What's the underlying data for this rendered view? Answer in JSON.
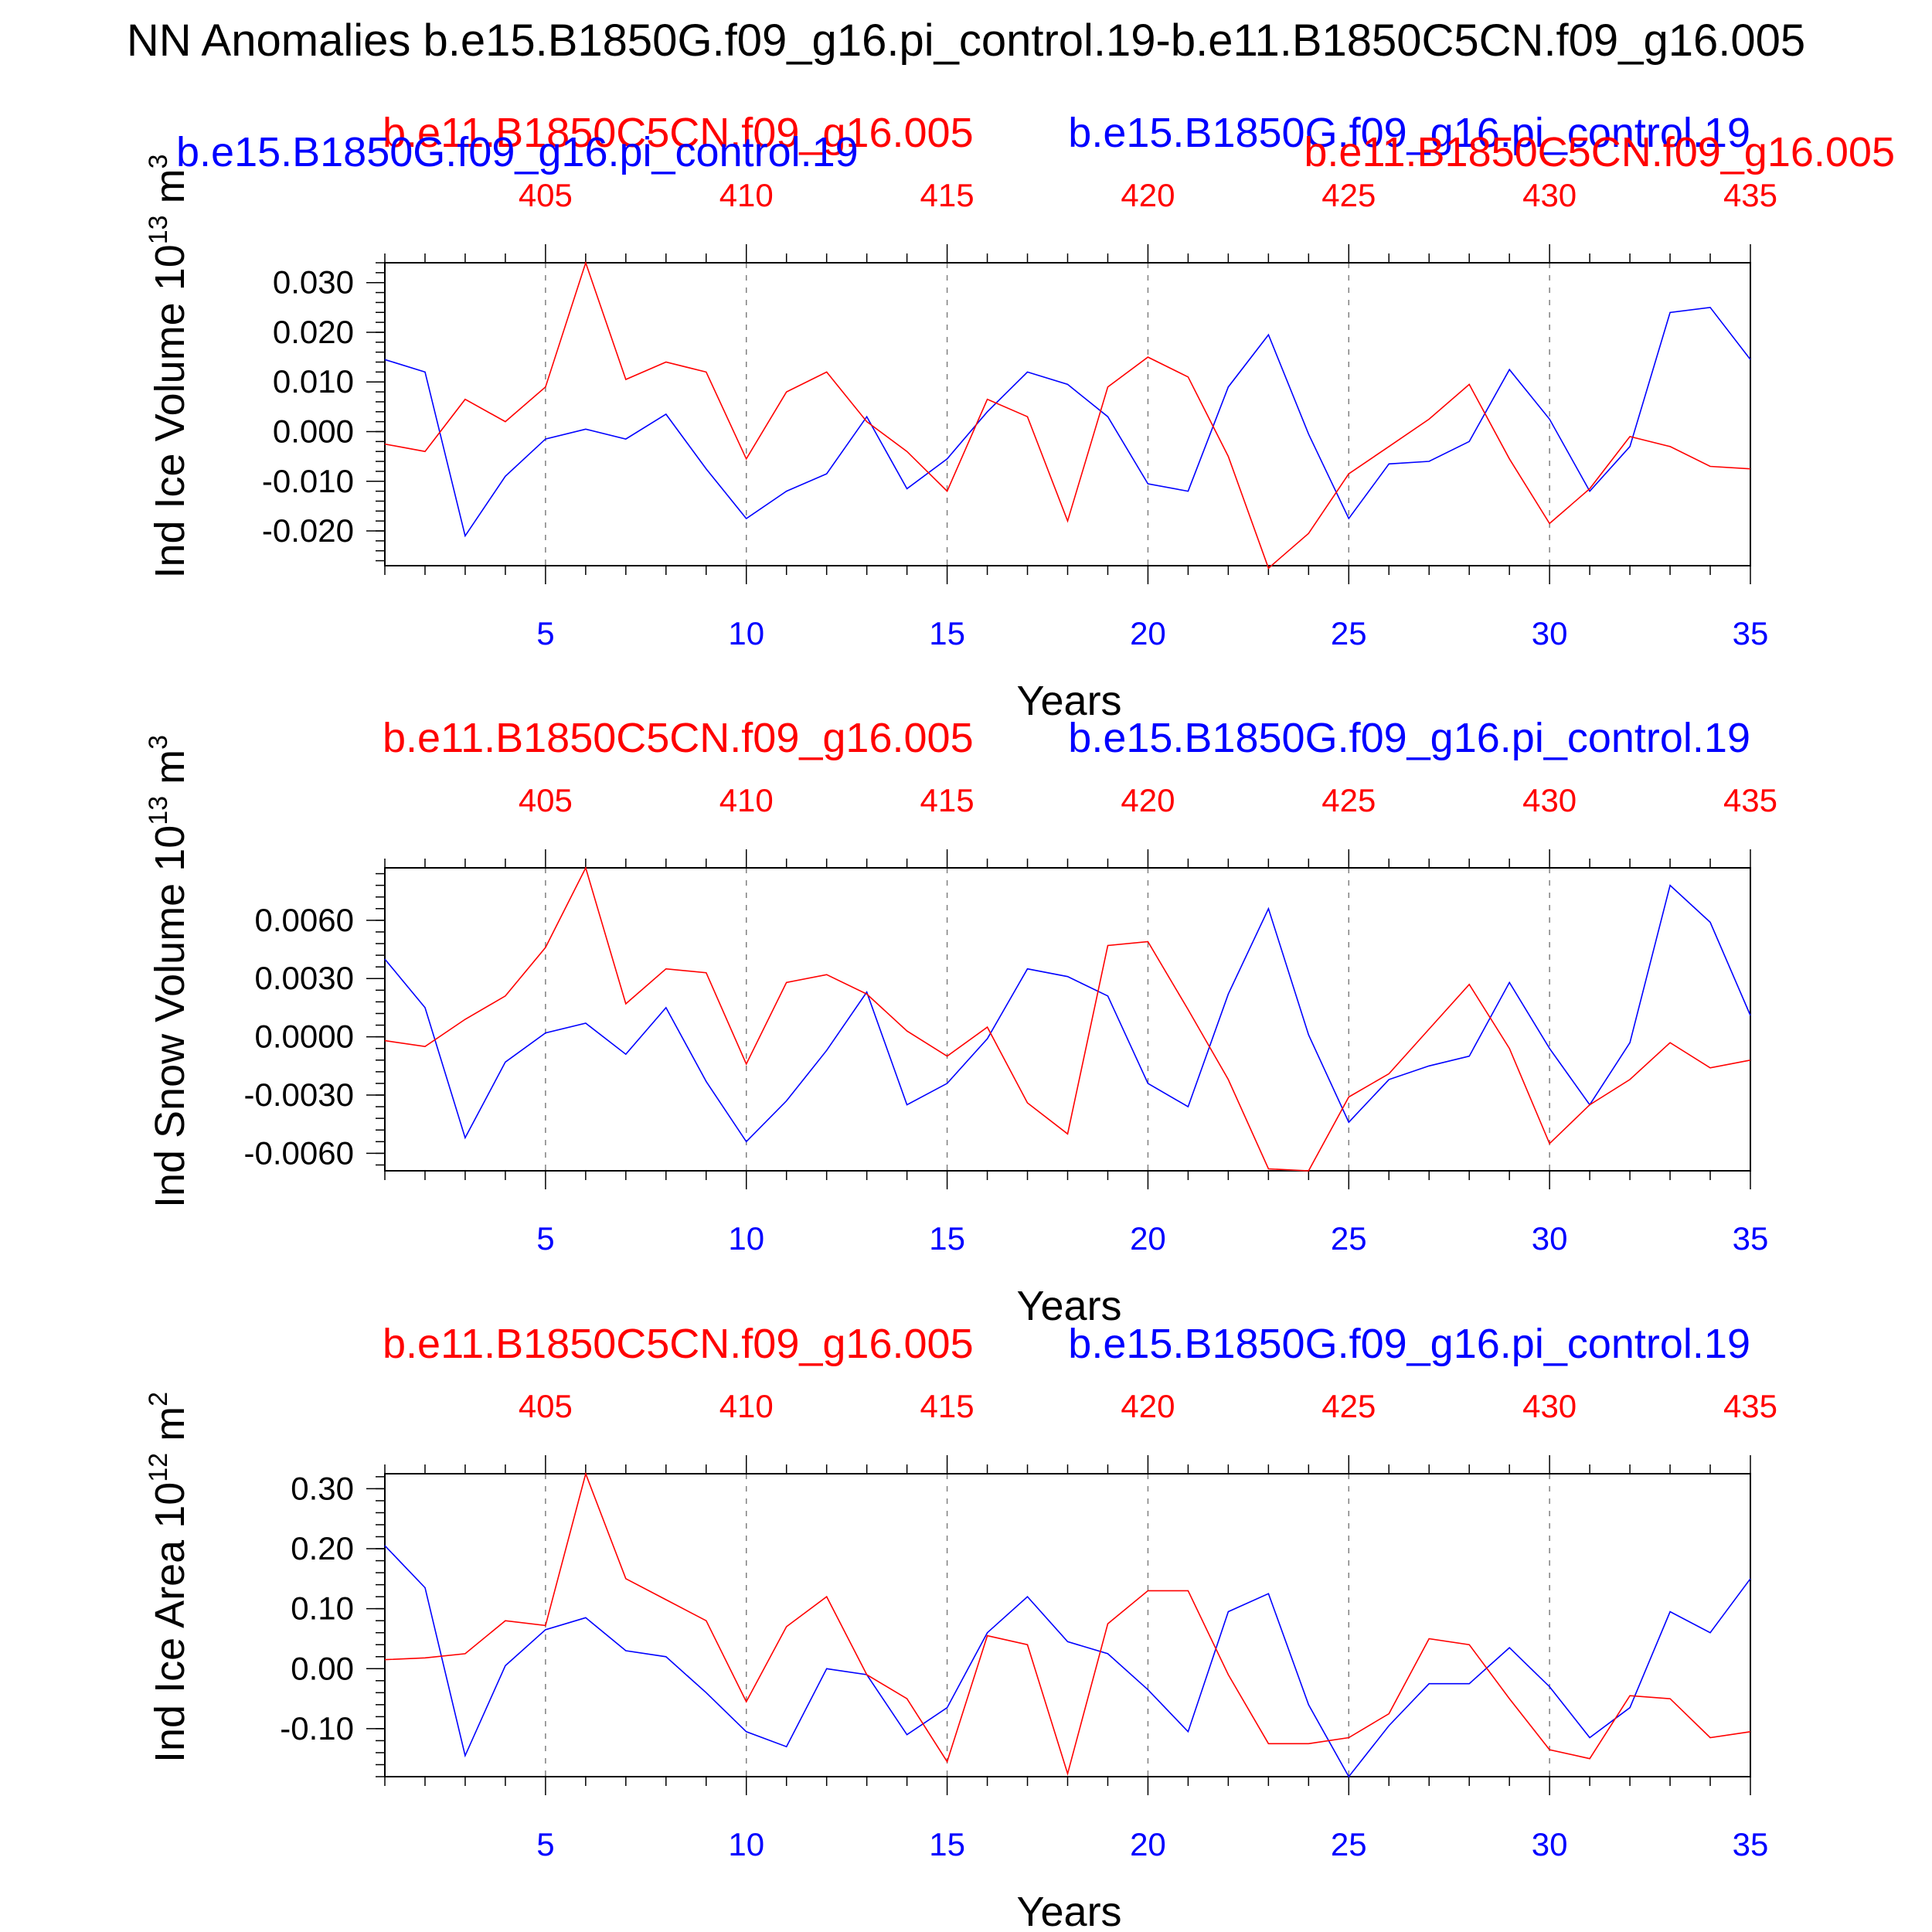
{
  "page_title": "NN Anomalies b.e15.B1850G.f09_g16.pi_control.19-b.e11.B1850C5CN.f09_g16.005",
  "colors": {
    "case_a": "#0000ff",
    "case_b": "#ff0000",
    "axis": "#000000",
    "grid": "#808080"
  },
  "case_a_name": "b.e15.B1850G.f09_g16.pi_control.19",
  "case_b_name": "b.e11.B1850C5CN.f09_g16.005",
  "chart_data": [
    {
      "type": "line",
      "ylabel": "Ind Ice Volume 10",
      "ylabel_exp": "13",
      "ylabel_unit": " m",
      "ylabel_unit_exp": "3",
      "xlabel": "Years",
      "xlim": [
        1,
        35
      ],
      "ylim": [
        -0.027,
        0.034
      ],
      "x_ticks": [
        5,
        10,
        15,
        20,
        25,
        30,
        35
      ],
      "top_ticks": [
        405,
        410,
        415,
        420,
        425,
        430,
        435
      ],
      "y_ticks": [
        -0.02,
        -0.01,
        0.0,
        0.01,
        0.02,
        0.03
      ],
      "y_tick_labels": [
        "-0.020",
        "-0.010",
        "0.000",
        "0.010",
        "0.020",
        "0.030"
      ],
      "y_minor_step": 0.002,
      "top_title_b": "b.e11.B1850C5CN.f09_g16.005",
      "top_title_a": "b.e15.B1850G.f09_g16.pi_control.19",
      "x": [
        1,
        2,
        3,
        4,
        5,
        6,
        7,
        8,
        9,
        10,
        11,
        12,
        13,
        14,
        15,
        16,
        17,
        18,
        19,
        20,
        21,
        22,
        23,
        24,
        25,
        26,
        27,
        28,
        29,
        30,
        31,
        32,
        33,
        34,
        35
      ],
      "series": [
        {
          "role": "a",
          "values": [
            0.0145,
            0.012,
            -0.021,
            -0.009,
            -0.0015,
            0.0005,
            -0.0015,
            0.0035,
            -0.0075,
            -0.0175,
            -0.012,
            -0.0085,
            0.003,
            -0.0115,
            -0.0055,
            0.004,
            0.012,
            0.0095,
            0.003,
            -0.0105,
            -0.012,
            0.009,
            0.0195,
            -0.0005,
            -0.0175,
            -0.0065,
            -0.006,
            -0.002,
            0.0125,
            0.0025,
            -0.012,
            -0.003,
            0.024,
            0.025,
            0.0145
          ]
        },
        {
          "role": "b",
          "values": [
            -0.0025,
            -0.004,
            0.0065,
            0.002,
            0.009,
            0.034,
            0.0105,
            0.014,
            0.012,
            -0.0055,
            0.008,
            0.012,
            0.002,
            -0.004,
            -0.012,
            0.0065,
            0.003,
            -0.018,
            0.009,
            0.015,
            0.011,
            -0.005,
            -0.0275,
            -0.0205,
            -0.0085,
            -0.003,
            0.0025,
            0.0095,
            -0.0055,
            -0.0185,
            -0.0115,
            -0.001,
            -0.003,
            -0.007,
            -0.0075
          ]
        }
      ]
    },
    {
      "type": "line",
      "ylabel": "Ind Snow Volume 10",
      "ylabel_exp": "13",
      "ylabel_unit": " m",
      "ylabel_unit_exp": "3",
      "xlabel": "Years",
      "xlim": [
        1,
        35
      ],
      "ylim": [
        -0.0069,
        0.0087
      ],
      "x_ticks": [
        5,
        10,
        15,
        20,
        25,
        30,
        35
      ],
      "top_ticks": [
        405,
        410,
        415,
        420,
        425,
        430,
        435
      ],
      "y_ticks": [
        -0.006,
        -0.003,
        0.0,
        0.003,
        0.006
      ],
      "y_tick_labels": [
        "-0.0060",
        "-0.0030",
        "0.0000",
        "0.0030",
        "0.0060"
      ],
      "y_minor_step": 0.0006,
      "top_title_b": "b.e11.B1850C5CN.f09_g16.005",
      "top_title_a": "b.e15.B1850G.f09_g16.pi_control.19",
      "x": [
        1,
        2,
        3,
        4,
        5,
        6,
        7,
        8,
        9,
        10,
        11,
        12,
        13,
        14,
        15,
        16,
        17,
        18,
        19,
        20,
        21,
        22,
        23,
        24,
        25,
        26,
        27,
        28,
        29,
        30,
        31,
        32,
        33,
        34,
        35
      ],
      "series": [
        {
          "role": "a",
          "values": [
            0.004,
            0.0015,
            -0.0052,
            -0.0013,
            0.0002,
            0.0007,
            -0.0009,
            0.0015,
            -0.0023,
            -0.0054,
            -0.0033,
            -0.0007,
            0.0023,
            -0.0035,
            -0.0024,
            -0.0001,
            0.0035,
            0.0031,
            0.0021,
            -0.0024,
            -0.0036,
            0.0022,
            0.0066,
            0.0001,
            -0.0044,
            -0.0022,
            -0.0015,
            -0.001,
            0.0028,
            -0.0006,
            -0.0035,
            -0.0003,
            0.0078,
            0.0059,
            0.0011
          ]
        },
        {
          "role": "b",
          "values": [
            -0.0002,
            -0.0005,
            0.0009,
            0.0021,
            0.0046,
            0.0087,
            0.0017,
            0.0035,
            0.0033,
            -0.0014,
            0.0028,
            0.0032,
            0.0022,
            0.0003,
            -0.001,
            0.0005,
            -0.0034,
            -0.005,
            0.0047,
            0.0049,
            0.0014,
            -0.0022,
            -0.0068,
            -0.0069,
            -0.0031,
            -0.0019,
            0.0004,
            0.0027,
            -0.0006,
            -0.0055,
            -0.0035,
            -0.0022,
            -0.0003,
            -0.0016,
            -0.0012
          ]
        }
      ]
    },
    {
      "type": "line",
      "ylabel": "Ind Ice Area 10",
      "ylabel_exp": "12",
      "ylabel_unit": " m",
      "ylabel_unit_exp": "2",
      "xlabel": "Years",
      "xlim": [
        1,
        35
      ],
      "ylim": [
        -0.18,
        0.325
      ],
      "x_ticks": [
        5,
        10,
        15,
        20,
        25,
        30,
        35
      ],
      "top_ticks": [
        405,
        410,
        415,
        420,
        425,
        430,
        435
      ],
      "y_ticks": [
        -0.1,
        0.0,
        0.1,
        0.2,
        0.3
      ],
      "y_tick_labels": [
        "-0.10",
        "0.00",
        "0.10",
        "0.20",
        "0.30"
      ],
      "y_minor_step": 0.02,
      "top_title_b": "b.e11.B1850C5CN.f09_g16.005",
      "top_title_a": "b.e15.B1850G.f09_g16.pi_control.19",
      "x": [
        1,
        2,
        3,
        4,
        5,
        6,
        7,
        8,
        9,
        10,
        11,
        12,
        13,
        14,
        15,
        16,
        17,
        18,
        19,
        20,
        21,
        22,
        23,
        24,
        25,
        26,
        27,
        28,
        29,
        30,
        31,
        32,
        33,
        34,
        35
      ],
      "series": [
        {
          "role": "a",
          "values": [
            0.205,
            0.135,
            -0.145,
            0.005,
            0.065,
            0.085,
            0.03,
            0.02,
            -0.04,
            -0.105,
            -0.13,
            0.0,
            -0.01,
            -0.11,
            -0.065,
            0.06,
            0.12,
            0.045,
            0.025,
            -0.035,
            -0.105,
            0.095,
            0.125,
            -0.06,
            -0.18,
            -0.095,
            -0.025,
            -0.025,
            0.035,
            -0.03,
            -0.115,
            -0.065,
            0.095,
            0.06,
            0.15
          ]
        },
        {
          "role": "b",
          "values": [
            0.015,
            0.018,
            0.025,
            0.08,
            0.072,
            0.325,
            0.15,
            0.115,
            0.08,
            -0.055,
            0.07,
            0.12,
            -0.01,
            -0.05,
            -0.155,
            0.055,
            0.04,
            -0.175,
            0.075,
            0.13,
            0.13,
            -0.01,
            -0.125,
            -0.125,
            -0.115,
            -0.075,
            0.05,
            0.04,
            -0.05,
            -0.135,
            -0.15,
            -0.045,
            -0.05,
            -0.115,
            -0.105
          ]
        }
      ]
    }
  ]
}
